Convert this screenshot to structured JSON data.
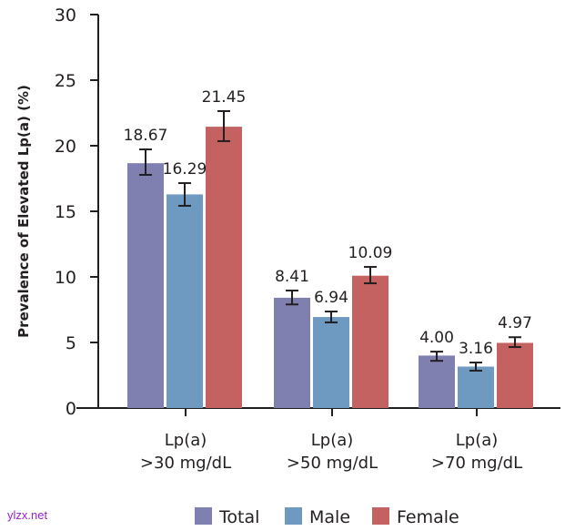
{
  "chart_data": {
    "type": "bar",
    "title": "",
    "xlabel": "",
    "ylabel": "Prevalence of Elevated Lp(a) (%)",
    "ylim": [
      0,
      30
    ],
    "yticks": [
      0,
      5,
      10,
      15,
      20,
      25,
      30
    ],
    "grid": false,
    "legend_placement": "bottom",
    "categories": [
      [
        "Lp(a)",
        ">30 mg/dL"
      ],
      [
        "Lp(a)",
        ">50 mg/dL"
      ],
      [
        "Lp(a)",
        ">70 mg/dL"
      ]
    ],
    "series": [
      {
        "name": "Total",
        "color": "#8080b0",
        "values": [
          18.67,
          8.41,
          4.0
        ],
        "labels": [
          "18.67",
          "8.41",
          "4.00"
        ],
        "ci_low": [
          17.78,
          7.9,
          3.6
        ],
        "ci_high": [
          19.72,
          8.96,
          4.3
        ]
      },
      {
        "name": "Male",
        "color": "#6e9ac2",
        "values": [
          16.29,
          6.94,
          3.16
        ],
        "labels": [
          "16.29",
          "6.94",
          "3.16"
        ],
        "ci_low": [
          15.42,
          6.53,
          2.85
        ],
        "ci_high": [
          17.15,
          7.36,
          3.47
        ]
      },
      {
        "name": "Female",
        "color": "#c46262",
        "values": [
          21.45,
          10.09,
          4.97
        ],
        "labels": [
          "21.45",
          "10.09",
          "4.97"
        ],
        "ci_low": [
          20.35,
          9.51,
          4.65
        ],
        "ci_high": [
          22.64,
          10.76,
          5.4
        ]
      }
    ]
  },
  "watermark": "ylzx.net"
}
